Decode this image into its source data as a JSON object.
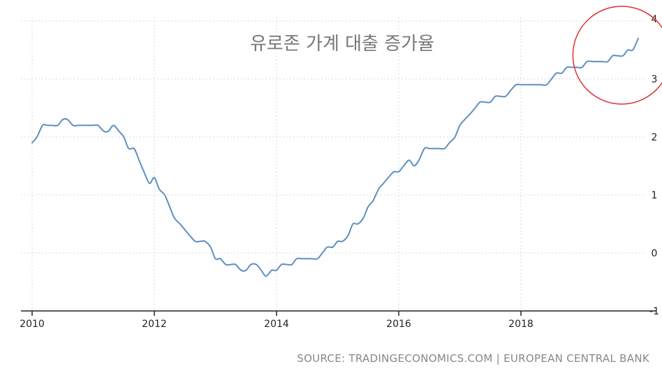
{
  "chart_data": {
    "type": "line",
    "title": "유로존 가계 대출 증가율",
    "source": "SOURCE: TRADINGECONOMICS.COM | EUROPEAN CENTRAL BANK",
    "xlabel": "",
    "ylabel": "",
    "xlim": [
      2010.0,
      2020.0
    ],
    "ylim": [
      -1,
      4
    ],
    "x_ticks": [
      "2010",
      "2012",
      "2014",
      "2016",
      "2018"
    ],
    "y_ticks": [
      "4",
      "3",
      "2",
      "1",
      "0",
      "-1"
    ],
    "grid": true,
    "line_color": "#5e8fc0",
    "annotation": {
      "shape": "circle",
      "color": "#e03030",
      "center": [
        2019.65,
        3.41
      ],
      "radius_years": 0.8
    },
    "series": [
      {
        "x": [
          2010.0,
          2010.08,
          2010.17,
          2010.25,
          2010.33,
          2010.42,
          2010.5,
          2010.58,
          2010.67,
          2010.75,
          2010.83,
          2010.92,
          2011.0,
          2011.08,
          2011.17,
          2011.25,
          2011.33,
          2011.42,
          2011.5,
          2011.58,
          2011.67,
          2011.75,
          2011.83,
          2011.92,
          2012.0,
          2012.08,
          2012.17,
          2012.25,
          2012.33,
          2012.42,
          2012.5,
          2012.58,
          2012.67,
          2012.75,
          2012.83,
          2012.92,
          2013.0,
          2013.08,
          2013.17,
          2013.25,
          2013.33,
          2013.42,
          2013.5,
          2013.58,
          2013.67,
          2013.75,
          2013.83,
          2013.92,
          2014.0,
          2014.08,
          2014.17,
          2014.25,
          2014.33,
          2014.42,
          2014.5,
          2014.58,
          2014.67,
          2014.75,
          2014.83,
          2014.92,
          2015.0,
          2015.08,
          2015.17,
          2015.25,
          2015.33,
          2015.42,
          2015.5,
          2015.58,
          2015.67,
          2015.75,
          2015.83,
          2015.92,
          2016.0,
          2016.08,
          2016.17,
          2016.25,
          2016.33,
          2016.42,
          2016.5,
          2016.58,
          2016.67,
          2016.75,
          2016.83,
          2016.92,
          2017.0,
          2017.08,
          2017.17,
          2017.25,
          2017.33,
          2017.42,
          2017.5,
          2017.58,
          2017.67,
          2017.75,
          2017.83,
          2017.92,
          2018.0,
          2018.08,
          2018.17,
          2018.25,
          2018.33,
          2018.42,
          2018.5,
          2018.58,
          2018.67,
          2018.75,
          2018.83,
          2018.92,
          2019.0,
          2019.08,
          2019.17,
          2019.25,
          2019.33,
          2019.42,
          2019.5,
          2019.58,
          2019.67,
          2019.75,
          2019.83,
          2019.92
        ],
        "values": [
          1.9,
          2.0,
          2.2,
          2.2,
          2.2,
          2.2,
          2.3,
          2.3,
          2.2,
          2.2,
          2.2,
          2.2,
          2.2,
          2.2,
          2.1,
          2.1,
          2.2,
          2.1,
          2.0,
          1.8,
          1.8,
          1.6,
          1.4,
          1.2,
          1.3,
          1.1,
          1.0,
          0.8,
          0.6,
          0.5,
          0.4,
          0.3,
          0.2,
          0.2,
          0.2,
          0.1,
          -0.1,
          -0.1,
          -0.2,
          -0.2,
          -0.2,
          -0.3,
          -0.3,
          -0.2,
          -0.2,
          -0.3,
          -0.4,
          -0.3,
          -0.3,
          -0.2,
          -0.2,
          -0.2,
          -0.1,
          -0.1,
          -0.1,
          -0.1,
          -0.1,
          0.0,
          0.1,
          0.1,
          0.2,
          0.2,
          0.3,
          0.5,
          0.5,
          0.6,
          0.8,
          0.9,
          1.1,
          1.2,
          1.3,
          1.4,
          1.4,
          1.5,
          1.6,
          1.5,
          1.6,
          1.8,
          1.8,
          1.8,
          1.8,
          1.8,
          1.9,
          2.0,
          2.2,
          2.3,
          2.4,
          2.5,
          2.6,
          2.6,
          2.6,
          2.7,
          2.7,
          2.7,
          2.8,
          2.9,
          2.9,
          2.9,
          2.9,
          2.9,
          2.9,
          2.9,
          3.0,
          3.1,
          3.1,
          3.2,
          3.2,
          3.2,
          3.2,
          3.3,
          3.3,
          3.3,
          3.3,
          3.3,
          3.4,
          3.4,
          3.4,
          3.5,
          3.5,
          3.7
        ]
      }
    ]
  }
}
